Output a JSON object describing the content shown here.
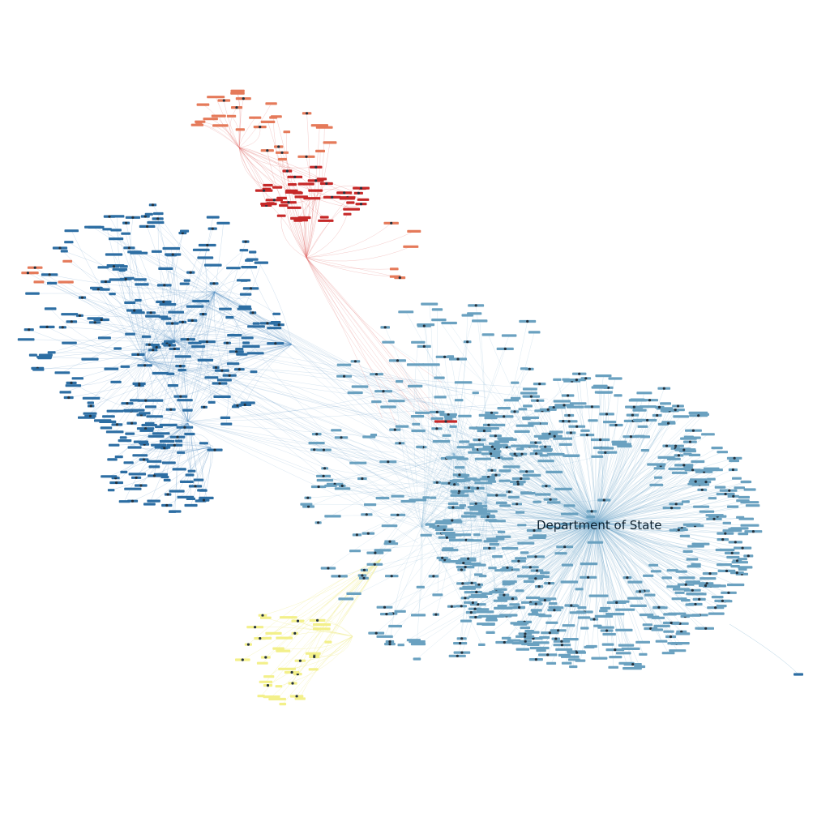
{
  "graph": {
    "hub_label": "Department of State"
  },
  "colors": {
    "background": "#ffffff",
    "blue_edge": "#5b93c2",
    "light_blue_edge": "#7fb0cf",
    "red_edge": "#d9534f",
    "yellow_edge": "#f2ee9a",
    "cluster_dark_blue": "#2d6ea3",
    "cluster_light_blue": "#6aa1c0",
    "cluster_red": "#c62828",
    "cluster_salmon": "#e57a5a",
    "cluster_yellow": "#f3f08a",
    "node_dot": "#23313d"
  }
}
